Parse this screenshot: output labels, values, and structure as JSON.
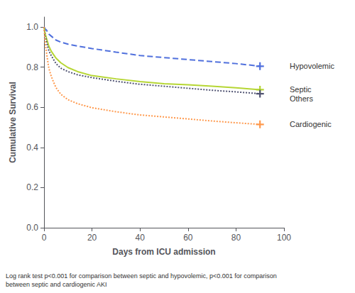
{
  "chart_data": {
    "type": "line",
    "xlabel": "Days from ICU admission",
    "ylabel": "Cumulative Survival",
    "xlim": [
      0,
      100
    ],
    "ylim": [
      0.0,
      1.05
    ],
    "xticks": [
      0,
      20,
      40,
      60,
      80,
      100
    ],
    "yticks": [
      {
        "value": 0.0,
        "label": "0.0"
      },
      {
        "value": 0.2,
        "label": "0.2"
      },
      {
        "value": 0.4,
        "label": "0.4"
      },
      {
        "value": 0.6,
        "label": "0.6"
      },
      {
        "value": 0.8,
        "label": "0.8"
      },
      {
        "value": 1.0,
        "label": "1.0"
      }
    ],
    "grid": false,
    "marker": "plus",
    "x": [
      0,
      0.3,
      0.5,
      1,
      1.5,
      2,
      3,
      4,
      5,
      7,
      10,
      14,
      20,
      30,
      40,
      50,
      60,
      70,
      80,
      90
    ],
    "series": [
      {
        "name": "Hypovolemic",
        "line_style": "dashed",
        "values": [
          1.0,
          0.995,
          0.99,
          0.985,
          0.975,
          0.965,
          0.955,
          0.945,
          0.935,
          0.925,
          0.915,
          0.905,
          0.893,
          0.875,
          0.858,
          0.848,
          0.838,
          0.828,
          0.818,
          0.805
        ]
      },
      {
        "name": "Septic",
        "line_style": "solid",
        "values": [
          1.0,
          0.98,
          0.965,
          0.945,
          0.925,
          0.905,
          0.88,
          0.862,
          0.845,
          0.822,
          0.798,
          0.778,
          0.758,
          0.742,
          0.728,
          0.718,
          0.712,
          0.705,
          0.697,
          0.688
        ]
      },
      {
        "name": "Others",
        "line_style": "dotted",
        "values": [
          1.0,
          0.975,
          0.955,
          0.93,
          0.905,
          0.882,
          0.858,
          0.838,
          0.818,
          0.795,
          0.778,
          0.762,
          0.748,
          0.73,
          0.715,
          0.705,
          0.695,
          0.685,
          0.677,
          0.668
        ]
      },
      {
        "name": "Cardiogenic",
        "line_style": "dotted",
        "values": [
          1.0,
          0.95,
          0.92,
          0.875,
          0.835,
          0.795,
          0.755,
          0.725,
          0.698,
          0.665,
          0.638,
          0.618,
          0.598,
          0.578,
          0.562,
          0.552,
          0.542,
          0.532,
          0.523,
          0.515
        ]
      }
    ],
    "annotations": [
      "Log rank test p<0.001 for comparison between septic and hypovolemic, p<0.001 for comparison\nbetween septic and cardiogenic AKI"
    ]
  }
}
